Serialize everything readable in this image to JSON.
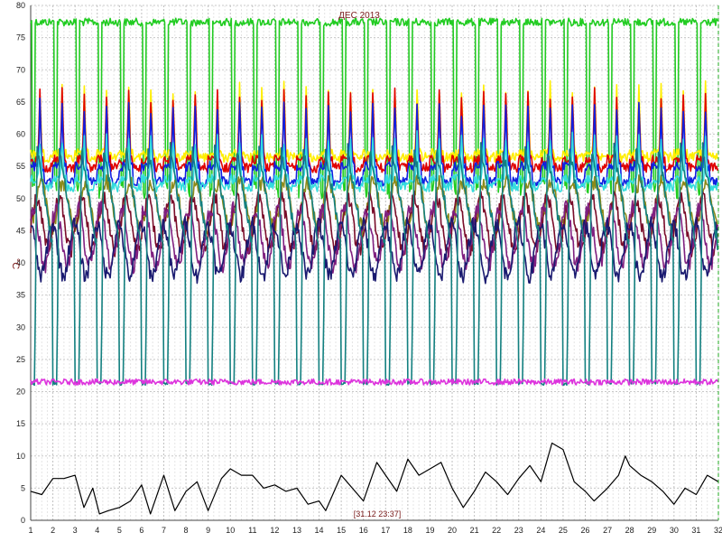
{
  "chart_data": {
    "type": "line",
    "title": "ДЕС 2013",
    "ylabel": "°C",
    "cursor_label": "[31.12 23:37]",
    "x_ticks": [
      1,
      2,
      3,
      4,
      5,
      6,
      7,
      8,
      9,
      10,
      11,
      12,
      13,
      14,
      15,
      16,
      17,
      18,
      19,
      20,
      21,
      22,
      23,
      24,
      25,
      26,
      27,
      28,
      29,
      30,
      31,
      32
    ],
    "y_ticks": [
      0,
      5,
      10,
      15,
      20,
      25,
      30,
      35,
      40,
      45,
      50,
      55,
      60,
      65,
      70,
      75,
      80
    ],
    "xlim": [
      1,
      32
    ],
    "ylim": [
      0,
      80
    ],
    "grid": true,
    "legend": "none",
    "series": [
      {
        "color": "#22cc22",
        "day_min": 50,
        "day_max": 78,
        "base": 78,
        "kind": "top"
      },
      {
        "color": "#ffee00",
        "day_min": 56,
        "day_max": 68,
        "base": 57,
        "kind": "peak"
      },
      {
        "color": "#e00000",
        "day_min": 54,
        "day_max": 67,
        "base": 56,
        "kind": "peak"
      },
      {
        "color": "#1020e0",
        "day_min": 51,
        "day_max": 65,
        "base": 55,
        "kind": "peak"
      },
      {
        "color": "#33dddd",
        "day_min": 51,
        "day_max": 60,
        "base": 53,
        "kind": "peak"
      },
      {
        "color": "#8b8b1a",
        "day_min": 46,
        "day_max": 55,
        "base": 49,
        "kind": "wave"
      },
      {
        "color": "#7a0d2a",
        "day_min": 40,
        "day_max": 50,
        "base": 46,
        "kind": "wave"
      },
      {
        "color": "#802080",
        "day_min": 38,
        "day_max": 49,
        "base": 44,
        "kind": "wave"
      },
      {
        "color": "#1a1a70",
        "day_min": 38,
        "day_max": 48,
        "base": 42,
        "kind": "wave"
      },
      {
        "color": "#138080",
        "day_min": 21,
        "day_max": 58,
        "base": 40,
        "kind": "daily"
      },
      {
        "color": "#dd33dd",
        "day_min": 21,
        "day_max": 22,
        "base": 21.5,
        "kind": "flat"
      },
      {
        "color": "#000000",
        "day_min": 0.5,
        "day_max": 12,
        "base": 5,
        "kind": "outdoor",
        "points": [
          [
            1,
            4.5
          ],
          [
            1.5,
            4
          ],
          [
            2,
            6.5
          ],
          [
            2.5,
            6.5
          ],
          [
            3,
            7
          ],
          [
            3.4,
            2
          ],
          [
            3.8,
            5
          ],
          [
            4.1,
            1
          ],
          [
            4.5,
            1.5
          ],
          [
            5,
            2
          ],
          [
            5.5,
            3
          ],
          [
            6,
            5.5
          ],
          [
            6.4,
            1
          ],
          [
            7,
            7
          ],
          [
            7.5,
            1.5
          ],
          [
            8,
            4.5
          ],
          [
            8.5,
            6
          ],
          [
            9,
            1.5
          ],
          [
            9.6,
            6.5
          ],
          [
            10,
            8
          ],
          [
            10.5,
            7
          ],
          [
            11,
            7
          ],
          [
            11.5,
            5
          ],
          [
            12,
            5.5
          ],
          [
            12.5,
            4.5
          ],
          [
            13,
            5
          ],
          [
            13.5,
            2.5
          ],
          [
            14,
            3
          ],
          [
            14.3,
            1.5
          ],
          [
            15,
            7
          ],
          [
            15.5,
            5
          ],
          [
            16,
            3
          ],
          [
            16.6,
            9
          ],
          [
            17,
            7
          ],
          [
            17.5,
            4.5
          ],
          [
            18,
            9.5
          ],
          [
            18.5,
            7
          ],
          [
            19,
            8
          ],
          [
            19.5,
            9
          ],
          [
            20,
            5
          ],
          [
            20.5,
            2
          ],
          [
            21,
            4.5
          ],
          [
            21.5,
            7.5
          ],
          [
            22,
            6
          ],
          [
            22.5,
            4
          ],
          [
            23,
            6.5
          ],
          [
            23.5,
            8.5
          ],
          [
            24,
            6
          ],
          [
            24.5,
            12
          ],
          [
            25,
            11
          ],
          [
            25.5,
            6
          ],
          [
            26,
            4.5
          ],
          [
            26.4,
            3
          ],
          [
            27,
            5
          ],
          [
            27.5,
            7
          ],
          [
            27.8,
            10
          ],
          [
            28,
            8.5
          ],
          [
            28.5,
            7
          ],
          [
            29,
            6
          ],
          [
            29.5,
            4.5
          ],
          [
            30,
            2.5
          ],
          [
            30.5,
            5
          ],
          [
            31,
            4
          ],
          [
            31.5,
            7
          ],
          [
            32,
            6
          ]
        ]
      }
    ]
  }
}
